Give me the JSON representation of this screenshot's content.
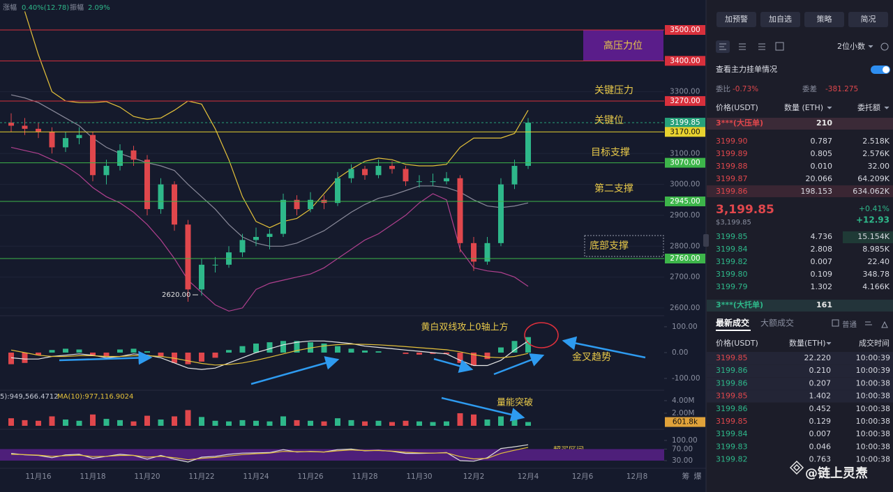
{
  "header": {
    "change_label": "涨幅",
    "change": "0.40%(12.78)",
    "amplitude_label": "振幅",
    "amplitude": "2.09%"
  },
  "chart_data": {
    "type": "candlestick",
    "categories": [
      null,
      null,
      "11月16",
      null,
      null,
      null,
      "11月18",
      null,
      null,
      null,
      "11月20",
      null,
      null,
      null,
      "11月22",
      null,
      null,
      null,
      "11月24",
      null,
      null,
      null,
      "11月26",
      null,
      null,
      null,
      "11月28",
      null,
      null,
      null,
      "11月30",
      null,
      null,
      null,
      "12月2",
      null,
      null,
      null,
      "12月4",
      null,
      null,
      null,
      "12月6",
      null,
      null,
      null,
      "12月8"
    ],
    "up_color": "#2eb88a",
    "down_color": "#e0474c",
    "candles": [
      [
        3200,
        3230,
        3170,
        3190
      ],
      [
        3190,
        3215,
        3160,
        3180
      ],
      [
        3180,
        3200,
        3150,
        3170
      ],
      [
        3170,
        3185,
        3100,
        3120
      ],
      [
        3120,
        3170,
        3105,
        3150
      ],
      [
        3150,
        3185,
        3130,
        3160
      ],
      [
        3160,
        3170,
        3010,
        3030
      ],
      [
        3030,
        3080,
        3000,
        3060
      ],
      [
        3060,
        3130,
        3045,
        3110
      ],
      [
        3110,
        3125,
        3060,
        3080
      ],
      [
        3080,
        3095,
        2900,
        2920
      ],
      [
        2920,
        3020,
        2905,
        3000
      ],
      [
        3000,
        3010,
        2850,
        2870
      ],
      [
        2870,
        2885,
        2620,
        2660
      ],
      [
        2660,
        2760,
        2640,
        2740
      ],
      [
        2740,
        2765,
        2715,
        2740
      ],
      [
        2740,
        2800,
        2730,
        2780
      ],
      [
        2780,
        2840,
        2765,
        2820
      ],
      [
        2820,
        2860,
        2800,
        2830
      ],
      [
        2830,
        2855,
        2790,
        2840
      ],
      [
        2840,
        2970,
        2830,
        2950
      ],
      [
        2950,
        2965,
        2900,
        2920
      ],
      [
        2920,
        2975,
        2910,
        2950
      ],
      [
        2950,
        2965,
        2920,
        2940
      ],
      [
        2940,
        3040,
        2930,
        3020
      ],
      [
        3020,
        3065,
        3005,
        3050
      ],
      [
        3050,
        3060,
        3015,
        3030
      ],
      [
        3030,
        3080,
        3020,
        3060
      ],
      [
        3060,
        3075,
        3035,
        3050
      ],
      [
        3050,
        3060,
        2995,
        3010
      ],
      [
        3010,
        3030,
        2990,
        3010
      ],
      [
        3010,
        3035,
        2995,
        3010
      ],
      [
        3010,
        3040,
        3000,
        3020
      ],
      [
        3020,
        3030,
        2780,
        2810
      ],
      [
        2810,
        2830,
        2720,
        2750
      ],
      [
        2750,
        2830,
        2740,
        2810
      ],
      [
        2810,
        3020,
        2800,
        3000
      ],
      [
        3000,
        3080,
        2985,
        3060
      ],
      [
        3060,
        3215,
        3050,
        3199.85
      ],
      null,
      null,
      null,
      null,
      null,
      null,
      null,
      null
    ],
    "series": [
      {
        "color": "#e5c23a",
        "values": [
          null,
          3560,
          3420,
          3300,
          3270,
          3265,
          3265,
          3268,
          3250,
          3220,
          3210,
          3215,
          3240,
          3270,
          3260,
          3180,
          3080,
          2960,
          2880,
          2860,
          2880,
          2890,
          2920,
          2970,
          3020,
          3050,
          3075,
          3085,
          3080,
          3065,
          3060,
          3060,
          3065,
          3120,
          3150,
          3150,
          3150,
          3165,
          3240,
          null,
          null,
          null,
          null,
          null,
          null,
          null,
          null
        ]
      },
      {
        "color": "#8a8a9a",
        "values": [
          3290,
          3280,
          3265,
          3240,
          3215,
          3190,
          3150,
          3120,
          3100,
          3085,
          3070,
          3060,
          3045,
          3000,
          2960,
          2920,
          2870,
          2830,
          2810,
          2800,
          2800,
          2810,
          2830,
          2850,
          2880,
          2910,
          2935,
          2955,
          2965,
          2980,
          2995,
          2995,
          2990,
          2975,
          2950,
          2930,
          2925,
          2930,
          2940,
          null,
          null,
          null,
          null,
          null,
          null,
          null,
          null
        ]
      },
      {
        "color": "#b0408f",
        "values": [
          3120,
          3110,
          3100,
          3080,
          3060,
          3030,
          2990,
          2960,
          2940,
          2910,
          2870,
          2820,
          2760,
          2690,
          2650,
          2610,
          2590,
          2600,
          2660,
          2680,
          2690,
          2700,
          2710,
          2730,
          2760,
          2790,
          2820,
          2840,
          2870,
          2900,
          2940,
          2970,
          2950,
          2790,
          2730,
          2720,
          2715,
          2700,
          2670,
          null,
          null,
          null,
          null,
          null,
          null,
          null,
          null
        ]
      }
    ],
    "ylim": [
      2575,
      3597
    ],
    "yticks": [
      {
        "value": 2600,
        "label": "2600.00"
      },
      {
        "value": 2700,
        "label": "2700.00"
      },
      {
        "value": 2800,
        "label": "2800.00"
      },
      {
        "value": 2900,
        "label": "2900.00"
      },
      {
        "value": 3000,
        "label": "3000.00"
      },
      {
        "value": 3100,
        "label": "3100.00"
      },
      {
        "value": 3300,
        "label": "3300.00"
      }
    ],
    "grid": true,
    "levels": [
      {
        "value": 3500,
        "label": "3500.00",
        "color": "#d8303c"
      },
      {
        "value": 3400,
        "label": "3400.00",
        "color": "#d8303c"
      },
      {
        "value": 3270,
        "label": "3270.00",
        "color": "#d8303c"
      },
      {
        "value": 3199.85,
        "label": "3199.85",
        "color": "#27a17a",
        "dashed": true
      },
      {
        "value": 3170,
        "label": "3170.00",
        "color": "#e8d22f"
      },
      {
        "value": 3070,
        "label": "3070.00",
        "color": "#3db54a"
      },
      {
        "value": 2945,
        "label": "2945.00",
        "color": "#3db54a"
      },
      {
        "value": 2760,
        "label": "2760.00",
        "color": "#3db54a"
      }
    ],
    "low": {
      "value": 2620,
      "label": "2620.00"
    },
    "annotations": [
      "高压力位",
      "关键压力",
      "关键位",
      "目标支撑",
      "第二支撑",
      "底部支撑",
      "黄白双线攻上0轴上方",
      "金叉趋势",
      "量能突破",
      "超买区间"
    ],
    "panels": [
      {
        "type": "macd",
        "ylim": [
          -135,
          124
        ],
        "yticks": [
          {
            "value": 100,
            "label": "100.00"
          },
          {
            "value": 0,
            "label": "0.00"
          },
          {
            "value": -100,
            "label": "-100.00"
          }
        ],
        "values": [
          -45,
          -40,
          -10,
          10,
          15,
          12,
          -10,
          -15,
          12,
          15,
          5,
          -15,
          -40,
          -45,
          -35,
          -20,
          10,
          25,
          35,
          40,
          45,
          45,
          40,
          35,
          25,
          15,
          8,
          5,
          0,
          -5,
          -8,
          -5,
          -5,
          -40,
          -50,
          -25,
          20,
          45,
          60,
          null,
          null,
          null,
          null,
          null,
          null,
          null,
          null
        ],
        "series": [
          {
            "color": "#e8e8e8",
            "values": [
              -20,
              -25,
              -25,
              -15,
              -10,
              -5,
              -10,
              -20,
              -15,
              -5,
              -10,
              -20,
              -40,
              -60,
              -65,
              -60,
              -40,
              -20,
              0,
              15,
              30,
              40,
              45,
              45,
              40,
              35,
              25,
              20,
              15,
              10,
              5,
              0,
              -5,
              -30,
              -50,
              -50,
              -30,
              10,
              45,
              null,
              null,
              null,
              null,
              null,
              null,
              null,
              null
            ]
          },
          {
            "color": "#e5c23a",
            "values": [
              10,
              0,
              -10,
              -15,
              -15,
              -12,
              -12,
              -15,
              -15,
              -12,
              -12,
              -15,
              -22,
              -32,
              -42,
              -48,
              -46,
              -40,
              -30,
              -18,
              -5,
              8,
              18,
              26,
              31,
              33,
              32,
              30,
              27,
              23,
              19,
              15,
              11,
              3,
              -8,
              -17,
              -20,
              -15,
              -3,
              null,
              null,
              null,
              null,
              null,
              null,
              null,
              null
            ]
          }
        ]
      },
      {
        "type": "bar",
        "ylim": [
          0,
          5100000
        ],
        "yticks": [
          {
            "value": 4000000,
            "label": "4.00M"
          },
          {
            "value": 2000000,
            "label": "2.00M"
          }
        ],
        "legend": [
          "5):949,566.4712",
          "MA(10):977,116.9024"
        ],
        "current": {
          "value": 601800,
          "label": "601.8k",
          "color": "#e0a23a"
        },
        "values": [
          1200000,
          900000,
          800000,
          1500000,
          1000000,
          800000,
          1800000,
          1100000,
          900000,
          700000,
          1600000,
          1000000,
          1500000,
          2500000,
          1400000,
          800000,
          700000,
          900000,
          800000,
          700000,
          1500000,
          900000,
          800000,
          700000,
          1200000,
          900000,
          700000,
          800000,
          600000,
          800000,
          700000,
          600000,
          700000,
          2000000,
          1800000,
          1000000,
          1500000,
          1600000,
          601800,
          null,
          null,
          null,
          null,
          null,
          null,
          null,
          null
        ]
      },
      {
        "type": "line",
        "ylim": [
          13,
          129
        ],
        "band": [
          30,
          70
        ],
        "band_color": "#4e1f7a",
        "yticks": [
          {
            "value": 100,
            "label": "100.00"
          },
          {
            "value": 70,
            "label": "70.00"
          },
          {
            "value": 30,
            "label": "30.00"
          }
        ],
        "series": [
          {
            "color": "#dddddd",
            "values": [
              55,
              50,
              48,
              40,
              50,
              52,
              38,
              45,
              52,
              48,
              35,
              48,
              35,
              25,
              42,
              45,
              52,
              56,
              57,
              58,
              68,
              60,
              62,
              60,
              68,
              70,
              64,
              66,
              62,
              55,
              55,
              56,
              58,
              30,
              28,
              40,
              72,
              78,
              85,
              null,
              null,
              null,
              null,
              null,
              null,
              null,
              null
            ]
          },
          {
            "color": "#e5c23a",
            "values": [
              52,
              51,
              49,
              45,
              47,
              49,
              44,
              45,
              48,
              48,
              42,
              45,
              40,
              33,
              38,
              41,
              46,
              51,
              54,
              56,
              62,
              61,
              61,
              60,
              64,
              67,
              65,
              65,
              63,
              59,
              57,
              56,
              57,
              44,
              36,
              38,
              55,
              66,
              76,
              null,
              null,
              null,
              null,
              null,
              null,
              null,
              null
            ]
          }
        ]
      }
    ]
  },
  "axis_tools": [
    "筹",
    "爆"
  ],
  "buttons": [
    "加预警",
    "加自选",
    "策略",
    "简况"
  ],
  "precision": "2位小数",
  "order_book": {
    "title": "查看主力挂单情况",
    "ratio_label": "委比",
    "ratio": "-0.73%",
    "diff_label": "委差",
    "diff": "-381.275",
    "headers": [
      "价格(USDT)",
      "数量 (ETH)",
      "委托额"
    ],
    "ask_wall": {
      "label": "3***(大压单)",
      "qty": "210"
    },
    "asks": [
      [
        "3199.90",
        "0.787",
        "2.518K"
      ],
      [
        "3199.89",
        "0.805",
        "2.576K"
      ],
      [
        "3199.88",
        "0.010",
        "32.00"
      ],
      [
        "3199.87",
        "20.066",
        "64.209K"
      ],
      [
        "3199.86",
        "198.153",
        "634.062K"
      ]
    ],
    "last_price": "3,199.85",
    "last_price_usd": "$3,199.85",
    "change_pct": "+0.41%",
    "change": "+12.93",
    "bids": [
      [
        "3199.85",
        "4.736",
        "15.154K"
      ],
      [
        "3199.84",
        "2.808",
        "8.985K"
      ],
      [
        "3199.82",
        "0.007",
        "22.40"
      ],
      [
        "3199.80",
        "0.109",
        "348.78"
      ],
      [
        "3199.79",
        "1.302",
        "4.166K"
      ]
    ],
    "bid_wall": {
      "label": "3***(大托单)",
      "qty": "161"
    }
  },
  "trades": {
    "tabs": [
      "最新成交",
      "大额成交"
    ],
    "filter": "普通",
    "headers": [
      "价格(USDT)",
      "数量(ETH)",
      "成交时间"
    ],
    "rows": [
      {
        "price": "3199.85",
        "qty": "22.220",
        "time": "10:00:39",
        "color": "#e0474c"
      },
      {
        "price": "3199.86",
        "qty": "0.210",
        "time": "10:00:39",
        "color": "#2eb88a"
      },
      {
        "price": "3199.86",
        "qty": "0.207",
        "time": "10:00:38",
        "color": "#2eb88a"
      },
      {
        "price": "3199.85",
        "qty": "1.402",
        "time": "10:00:38",
        "color": "#e0474c"
      },
      {
        "price": "3199.86",
        "qty": "0.452",
        "time": "10:00:38",
        "color": "#2eb88a"
      },
      {
        "price": "3199.85",
        "qty": "0.129",
        "time": "10:00:38",
        "color": "#e0474c"
      },
      {
        "price": "3199.84",
        "qty": "0.007",
        "time": "10:00:38",
        "color": "#2eb88a"
      },
      {
        "price": "3199.83",
        "qty": "0.046",
        "time": "10:00:38",
        "color": "#2eb88a"
      },
      {
        "price": "3199.82",
        "qty": "0.763",
        "time": "10:00:38",
        "color": "#2eb88a"
      }
    ]
  },
  "watermark": "@链上灵焘"
}
